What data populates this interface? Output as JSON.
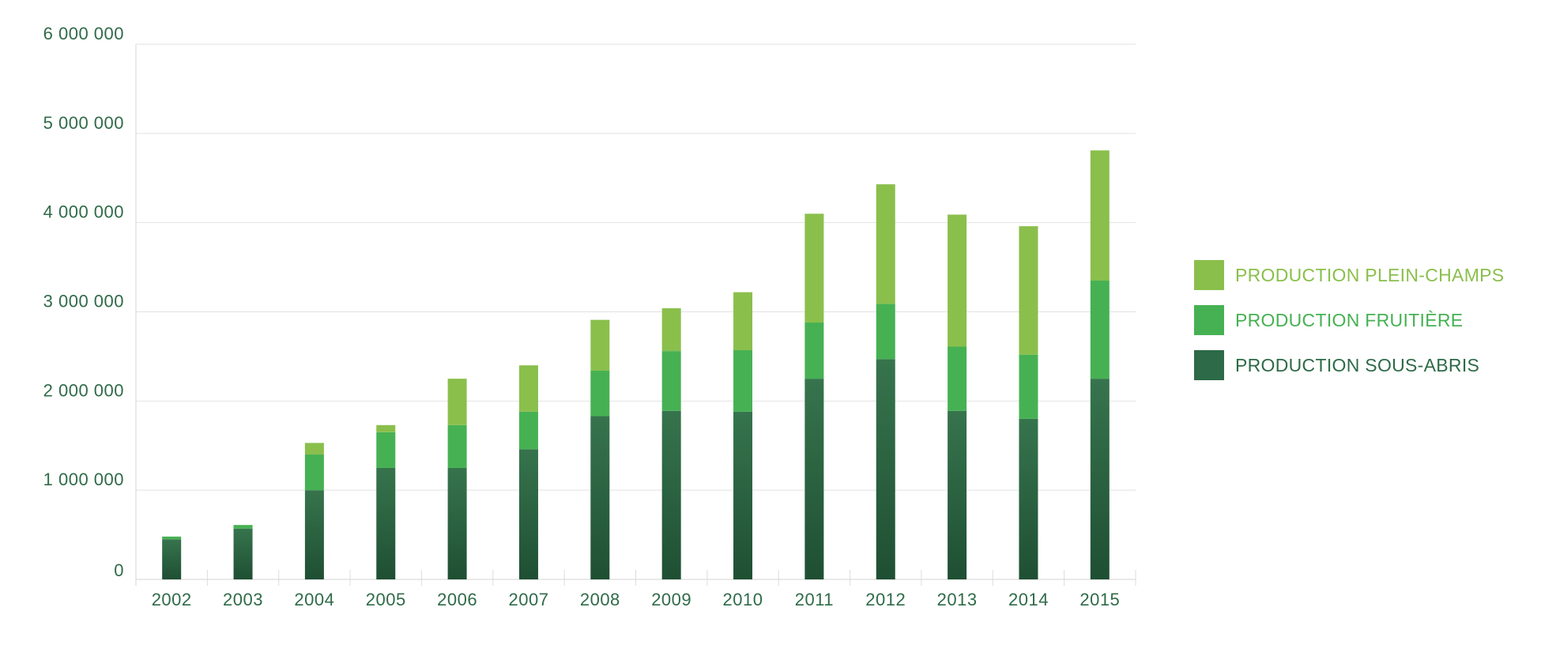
{
  "chart_data": {
    "type": "bar",
    "stacked": true,
    "categories": [
      "2002",
      "2003",
      "2004",
      "2005",
      "2006",
      "2007",
      "2008",
      "2009",
      "2010",
      "2011",
      "2012",
      "2013",
      "2014",
      "2015"
    ],
    "series": [
      {
        "name": "PRODUCTION SOUS-ABRIS",
        "color": "#2d6a47",
        "values": [
          450000,
          570000,
          1000000,
          1250000,
          1250000,
          1460000,
          1830000,
          1890000,
          1880000,
          2250000,
          2470000,
          1890000,
          1800000,
          2250000
        ]
      },
      {
        "name": "PRODUCTION FRUITIÈRE",
        "color": "#46b153",
        "values": [
          30000,
          40000,
          400000,
          400000,
          480000,
          420000,
          510000,
          670000,
          690000,
          630000,
          620000,
          720000,
          720000,
          1100000
        ]
      },
      {
        "name": "PRODUCTION PLEIN-CHAMPS",
        "color": "#8abf4c",
        "values": [
          0,
          0,
          130000,
          80000,
          520000,
          520000,
          570000,
          480000,
          650000,
          1220000,
          1340000,
          1480000,
          1440000,
          1460000
        ]
      }
    ],
    "y_ticks": [
      "0",
      "1 000 000",
      "2 000 000",
      "3 000 000",
      "4 000 000",
      "5 000 000",
      "6 000 000"
    ],
    "ylim": [
      0,
      6000000
    ],
    "grid": true,
    "legend_position": "right",
    "title": "",
    "xlabel": "",
    "ylabel": ""
  }
}
